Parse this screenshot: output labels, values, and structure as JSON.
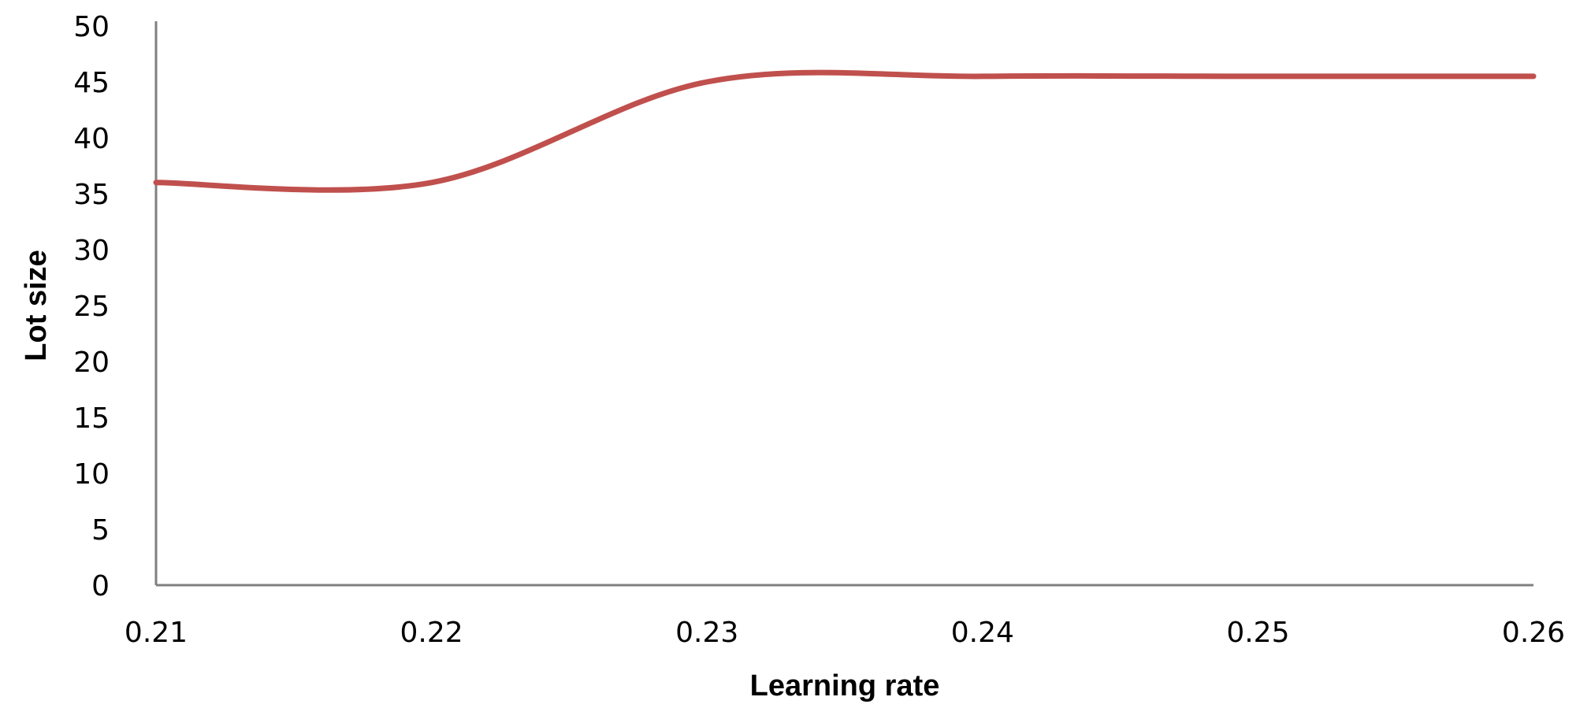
{
  "chart_data": {
    "type": "line",
    "title": "",
    "xlabel": "Learning rate",
    "ylabel": "Lot size",
    "x": [
      0.21,
      0.22,
      0.23,
      0.24,
      0.25,
      0.26
    ],
    "x_tick_labels": [
      "0.21",
      "0.22",
      "0.23",
      "0.24",
      "0.25",
      "0.26"
    ],
    "y_ticks": [
      0,
      5,
      10,
      15,
      20,
      25,
      30,
      35,
      40,
      45,
      50
    ],
    "xlim": [
      0.21,
      0.26
    ],
    "ylim": [
      0,
      50
    ],
    "grid": false,
    "legend": "none",
    "series": [
      {
        "values": [
          36,
          36,
          45,
          45.5,
          45.5,
          45.5
        ],
        "color": "#c0504d",
        "smooth": true
      }
    ]
  }
}
